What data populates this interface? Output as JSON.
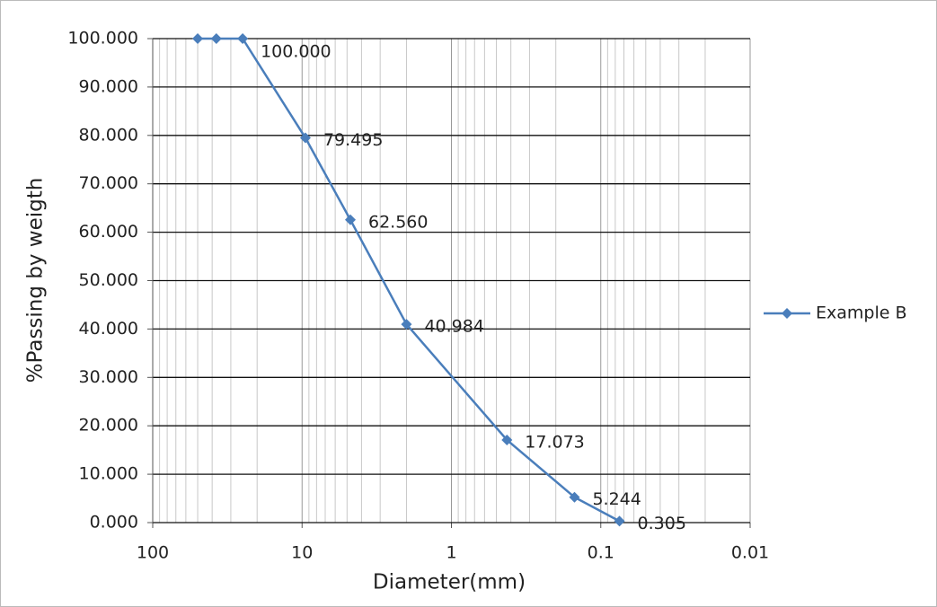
{
  "chart_data": {
    "type": "line",
    "x_label": "Diameter(mm)",
    "y_label": "%Passing by weigth",
    "x": [
      50,
      37.5,
      25,
      9.5,
      4.75,
      2,
      0.425,
      0.15,
      0.075
    ],
    "series": [
      {
        "name": "Example B",
        "color": "#4a7ebb",
        "values": [
          100,
          100,
          100,
          79.495,
          62.56,
          40.984,
          17.073,
          5.244,
          0.305
        ],
        "value_labels": [
          null,
          null,
          "100.000",
          "79.495",
          "62.560",
          "40.984",
          "17.073",
          "5.244",
          "0.305"
        ]
      }
    ],
    "xlim": [
      100,
      0.01
    ],
    "xticks": [
      100,
      10,
      1,
      0.1,
      0.01
    ],
    "xscale": "log",
    "ylim": [
      0,
      100
    ],
    "yticks": [
      {
        "value": 0,
        "label": "0.000"
      },
      {
        "value": 10,
        "label": "10.000"
      },
      {
        "value": 20,
        "label": "20.000"
      },
      {
        "value": 30,
        "label": "30.000"
      },
      {
        "value": 40,
        "label": "40.000"
      },
      {
        "value": 50,
        "label": "50.000"
      },
      {
        "value": 60,
        "label": "60.000"
      },
      {
        "value": 70,
        "label": "70.000"
      },
      {
        "value": 80,
        "label": "80.000"
      },
      {
        "value": 90,
        "label": "90.000"
      },
      {
        "value": 100,
        "label": "100.000"
      }
    ],
    "grid": true,
    "legend": "right"
  }
}
